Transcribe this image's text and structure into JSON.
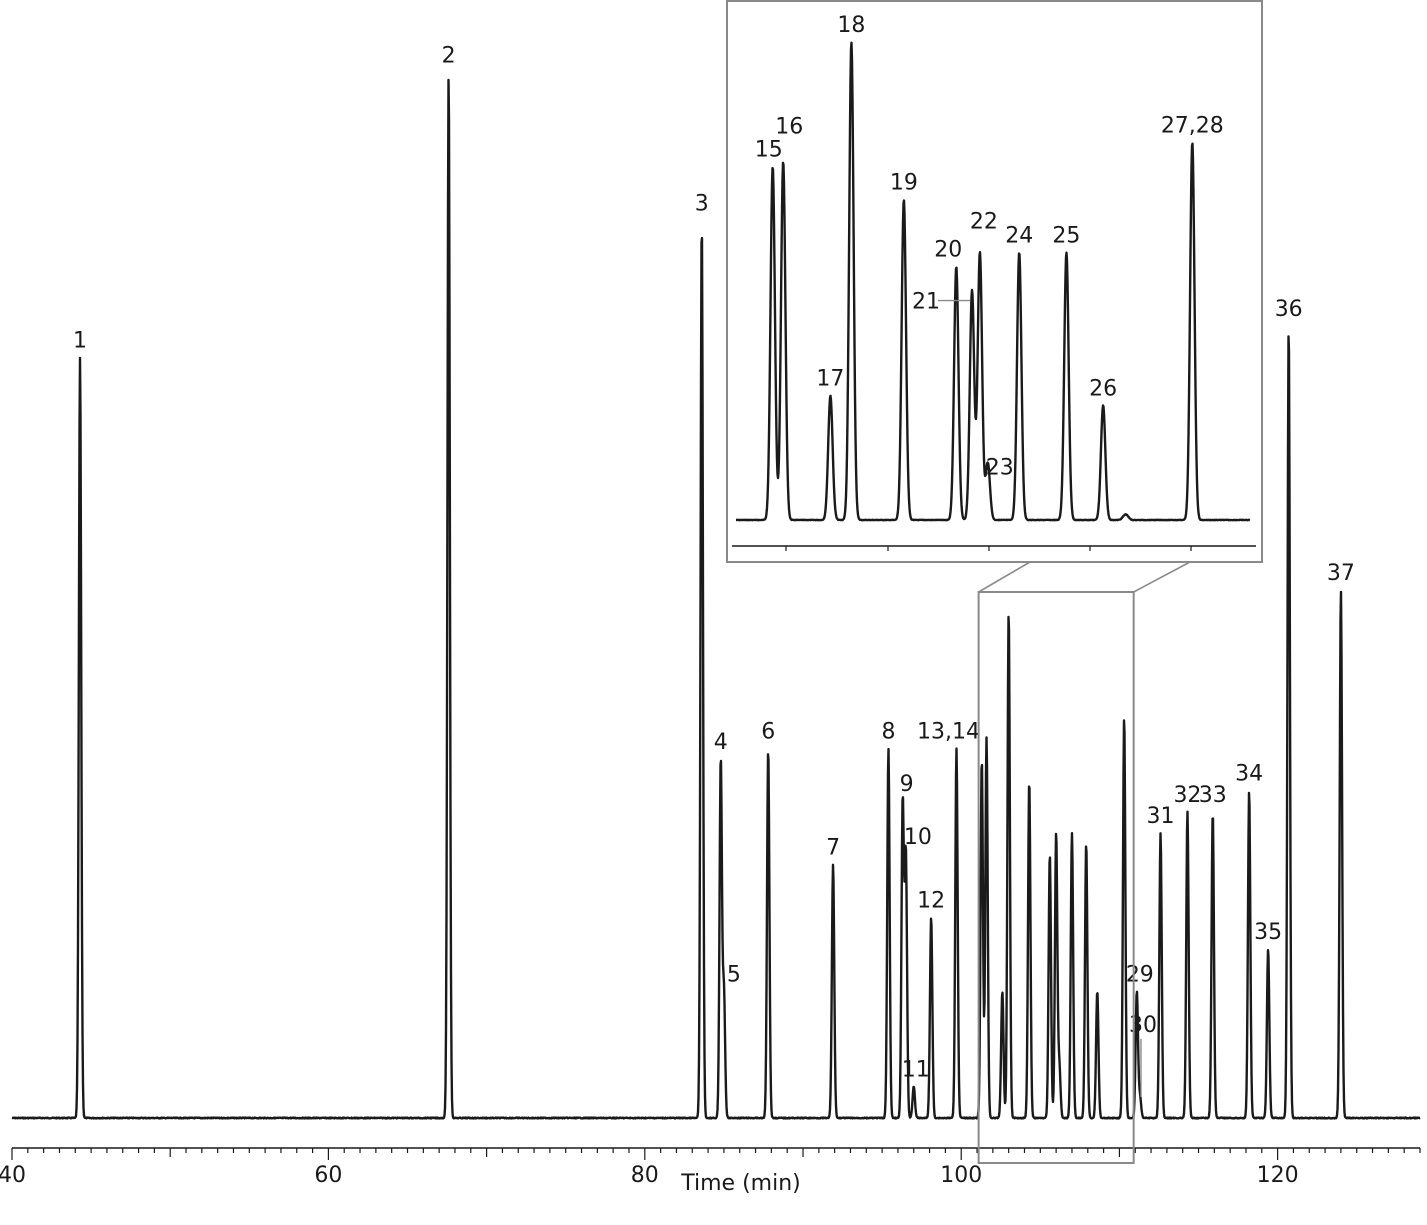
{
  "chart_data": {
    "type": "line",
    "title": "",
    "xlabel": "Time (min)",
    "ylabel": "",
    "xlim": [
      40,
      129
    ],
    "x_ticks": [
      40,
      60,
      80,
      100,
      120
    ],
    "minor_tick_step": 1,
    "grid": false,
    "legend": "none",
    "y_scale": "relative detector response (main trace: 0 = baseline, 1 = tallest peak)",
    "peaks": [
      {
        "label": "1",
        "time": 44.3,
        "height": 0.72
      },
      {
        "label": "2",
        "time": 67.6,
        "height": 0.99
      },
      {
        "label": "3",
        "time": 83.6,
        "height": 0.85
      },
      {
        "label": "4",
        "time": 84.8,
        "height": 0.34
      },
      {
        "label": "5",
        "time": 85.0,
        "height": 0.12
      },
      {
        "label": "6",
        "time": 87.8,
        "height": 0.35
      },
      {
        "label": "7",
        "time": 91.9,
        "height": 0.24
      },
      {
        "label": "8",
        "time": 95.4,
        "height": 0.35
      },
      {
        "label": "9",
        "time": 96.3,
        "height": 0.3
      },
      {
        "label": "10",
        "time": 96.5,
        "height": 0.25
      },
      {
        "label": "11",
        "time": 97.0,
        "height": 0.03
      },
      {
        "label": "12",
        "time": 98.1,
        "height": 0.19
      },
      {
        "label": "13,14",
        "time": 99.7,
        "height": 0.35
      },
      {
        "label": "29",
        "time": 111.1,
        "height": 0.12
      },
      {
        "label": "30",
        "time": 111.3,
        "height": 0.02
      },
      {
        "label": "31",
        "time": 112.6,
        "height": 0.27
      },
      {
        "label": "32",
        "time": 114.3,
        "height": 0.29
      },
      {
        "label": "33",
        "time": 115.9,
        "height": 0.29
      },
      {
        "label": "34",
        "time": 118.2,
        "height": 0.31
      },
      {
        "label": "35",
        "time": 119.4,
        "height": 0.16
      },
      {
        "label": "36",
        "time": 120.7,
        "height": 0.75
      },
      {
        "label": "37",
        "time": 124.0,
        "height": 0.5
      }
    ],
    "unlabeled_peaks": [
      {
        "time": 101.3,
        "height": 0.34
      },
      {
        "time": 101.6,
        "height": 0.36
      },
      {
        "time": 102.6,
        "height": 0.12
      },
      {
        "time": 103.0,
        "height": 0.48
      },
      {
        "time": 104.3,
        "height": 0.32
      },
      {
        "time": 105.6,
        "height": 0.25
      },
      {
        "time": 106.0,
        "height": 0.27
      },
      {
        "time": 106.2,
        "height": 0.05
      },
      {
        "time": 107.0,
        "height": 0.27
      },
      {
        "time": 107.9,
        "height": 0.26
      },
      {
        "time": 108.6,
        "height": 0.12
      },
      {
        "time": 110.3,
        "height": 0.38
      }
    ],
    "zoom_region": {
      "xlim": [
        101.1,
        110.9
      ]
    },
    "inset": {
      "description": "magnified view of zoom_region",
      "y_scale": "relative response within inset (1 = tallest peak)",
      "peaks": [
        {
          "label": "15",
          "time": 101.8,
          "height": 0.74
        },
        {
          "label": "16",
          "time": 102.0,
          "height": 0.75
        },
        {
          "label": "17",
          "time": 102.9,
          "height": 0.26
        },
        {
          "label": "18",
          "time": 103.3,
          "height": 1.0
        },
        {
          "label": "19",
          "time": 104.3,
          "height": 0.67
        },
        {
          "label": "20",
          "time": 105.3,
          "height": 0.53
        },
        {
          "label": "21",
          "time": 105.6,
          "height": 0.48
        },
        {
          "label": "22",
          "time": 105.75,
          "height": 0.56
        },
        {
          "label": "23",
          "time": 105.9,
          "height": 0.12
        },
        {
          "label": "24",
          "time": 106.5,
          "height": 0.56
        },
        {
          "label": "25",
          "time": 107.4,
          "height": 0.56
        },
        {
          "label": "26",
          "time": 108.1,
          "height": 0.24
        },
        {
          "label": "27,28",
          "time": 109.8,
          "height": 0.79
        }
      ]
    }
  }
}
